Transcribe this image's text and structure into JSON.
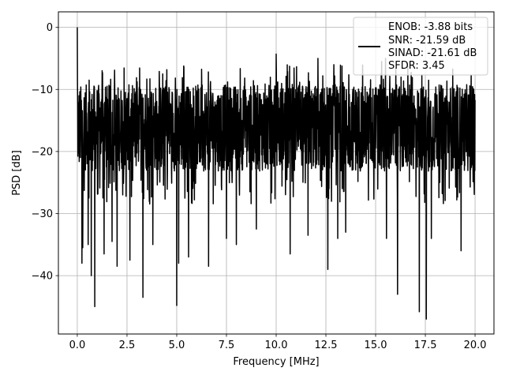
{
  "chart_data": {
    "type": "line",
    "title": "",
    "xlabel": "Frequency [MHz]",
    "ylabel": "PSD [dB]",
    "xlim": [
      -0.95,
      20.95
    ],
    "ylim": [
      -49.4,
      2.5
    ],
    "x_ticks": [
      0.0,
      2.5,
      5.0,
      7.5,
      10.0,
      12.5,
      15.0,
      17.5,
      20.0
    ],
    "x_tick_labels": [
      "0.0",
      "2.5",
      "5.0",
      "7.5",
      "10.0",
      "12.5",
      "15.0",
      "17.5",
      "20.0"
    ],
    "y_ticks": [
      0,
      -10,
      -20,
      -30,
      -40
    ],
    "y_tick_labels": [
      "0",
      "−10",
      "−20",
      "−30",
      "−40"
    ],
    "grid": true,
    "legend_position": "top-right",
    "series": [
      {
        "color": "#000000",
        "x_range": [
          0.0,
          20.0
        ],
        "num_points": 2049,
        "peak": {
          "x": 0.0,
          "y": 0.0
        },
        "noise_floor_mean": -16.2,
        "noise_band_upper": -6.0,
        "typical_spike_low": -28.5,
        "deep_nulls": [
          {
            "x": 0.23,
            "y": -38.0
          },
          {
            "x": 0.27,
            "y": -35.5
          },
          {
            "x": 0.55,
            "y": -35.0
          },
          {
            "x": 0.7,
            "y": -40.0
          },
          {
            "x": 0.88,
            "y": -45.0
          },
          {
            "x": 1.35,
            "y": -36.5
          },
          {
            "x": 1.75,
            "y": -34.5
          },
          {
            "x": 2.0,
            "y": -38.5
          },
          {
            "x": 2.65,
            "y": -37.5
          },
          {
            "x": 3.3,
            "y": -43.5
          },
          {
            "x": 3.8,
            "y": -35.0
          },
          {
            "x": 5.0,
            "y": -44.8
          },
          {
            "x": 5.1,
            "y": -38.0
          },
          {
            "x": 5.6,
            "y": -37.0
          },
          {
            "x": 6.6,
            "y": -38.5
          },
          {
            "x": 7.5,
            "y": -34.0
          },
          {
            "x": 8.0,
            "y": -35.0
          },
          {
            "x": 9.0,
            "y": -32.5
          },
          {
            "x": 10.7,
            "y": -36.5
          },
          {
            "x": 11.6,
            "y": -33.5
          },
          {
            "x": 12.6,
            "y": -39.0
          },
          {
            "x": 13.1,
            "y": -34.0
          },
          {
            "x": 13.5,
            "y": -33.0
          },
          {
            "x": 15.55,
            "y": -34.0
          },
          {
            "x": 16.1,
            "y": -43.0
          },
          {
            "x": 17.2,
            "y": -45.8
          },
          {
            "x": 17.55,
            "y": -47.0
          },
          {
            "x": 17.8,
            "y": -34.0
          },
          {
            "x": 19.3,
            "y": -36.0
          },
          {
            "x": 19.95,
            "y": -25.0
          }
        ],
        "tall_spikes": [
          {
            "x": 0.6,
            "y": -8.5
          },
          {
            "x": 4.3,
            "y": -7.5
          },
          {
            "x": 10.0,
            "y": -4.3
          },
          {
            "x": 12.1,
            "y": -5.0
          },
          {
            "x": 12.9,
            "y": -6.0
          },
          {
            "x": 15.3,
            "y": -5.5
          },
          {
            "x": 15.5,
            "y": -5.0
          }
        ]
      }
    ],
    "legend": {
      "lines": [
        "ENOB: -3.88 bits",
        "SNR: -21.59 dB",
        "SINAD: -21.61 dB",
        "SFDR: 3.45"
      ]
    }
  }
}
